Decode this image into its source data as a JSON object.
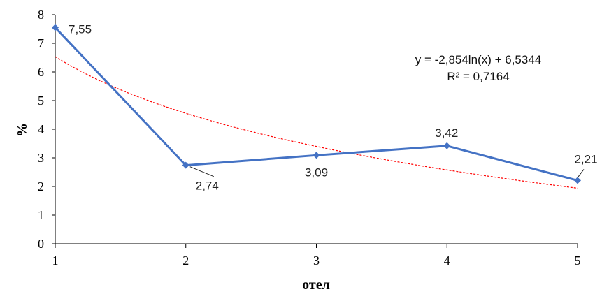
{
  "chart_data": {
    "type": "line",
    "x": [
      1,
      2,
      3,
      4,
      5
    ],
    "series": [
      {
        "values": [
          7.55,
          2.74,
          3.09,
          3.42,
          2.21
        ],
        "color": "#4472C4",
        "marker": "diamond"
      }
    ],
    "data_labels": [
      "7,55",
      "2,74",
      "3,09",
      "3,42",
      "2,21"
    ],
    "trendline": {
      "type": "logarithmic",
      "a": -2.854,
      "b": 6.5344,
      "color": "#FF0000",
      "style": "dotted",
      "equation": "y = -2,854ln(x) + 6,5344",
      "r_squared": "R² = 0,7164"
    },
    "xlabel": "отел",
    "ylabel": "%",
    "xlim": [
      1,
      5
    ],
    "ylim": [
      0,
      8
    ],
    "yticks": [
      "0",
      "1",
      "2",
      "3",
      "4",
      "5",
      "6",
      "7",
      "8"
    ],
    "xticks": [
      "1",
      "2",
      "3",
      "4",
      "5"
    ],
    "grid": false,
    "legend": "none"
  }
}
